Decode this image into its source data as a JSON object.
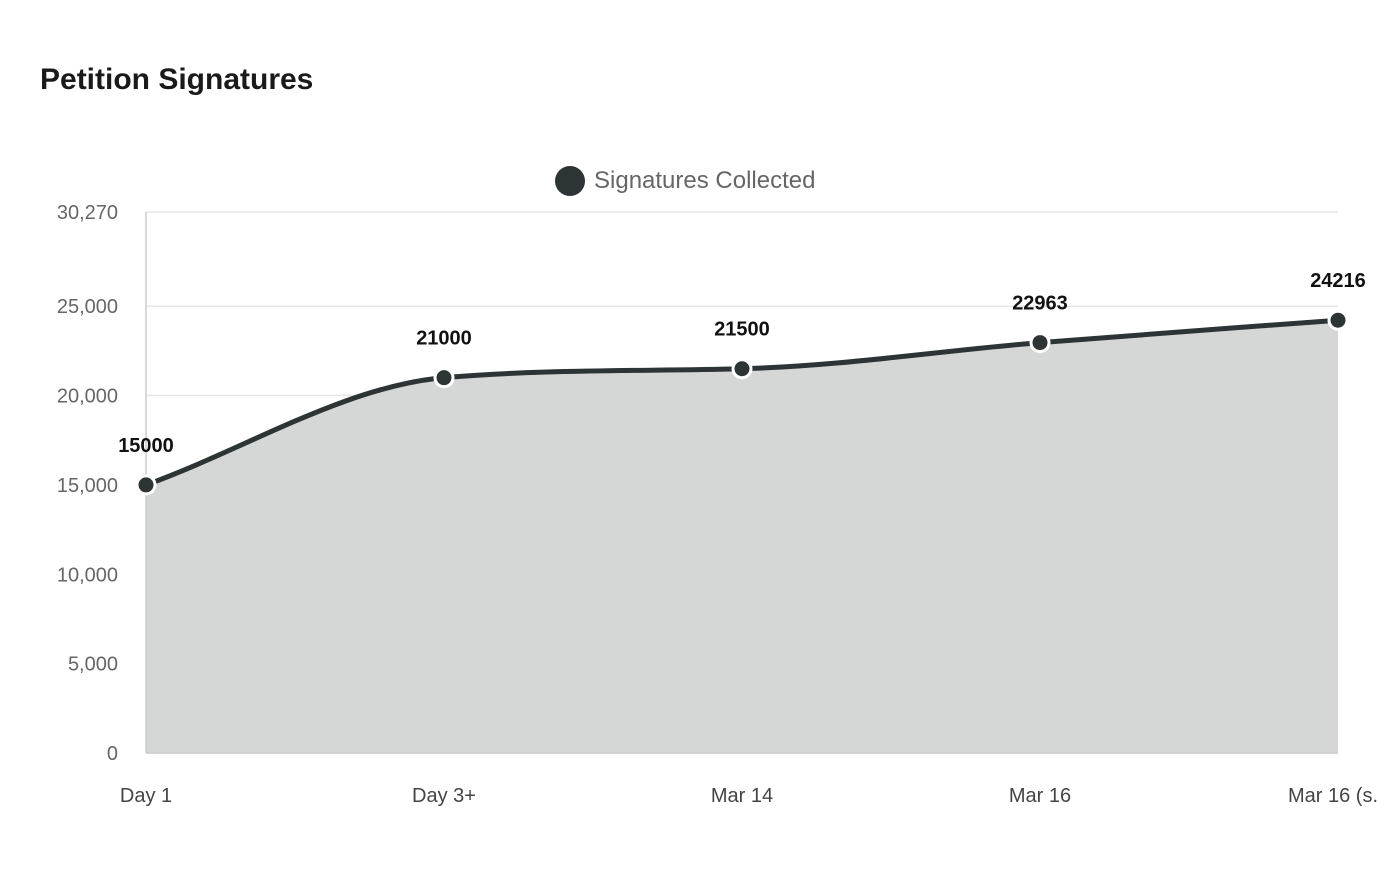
{
  "chart_data": {
    "type": "area",
    "title": "Petition Signatures",
    "categories": [
      "Day 1",
      "Day 3+",
      "Mar 14",
      "Mar 16",
      "Mar 16 (s."
    ],
    "series": [
      {
        "name": "Signatures Collected",
        "values": [
          15000,
          21000,
          21500,
          22963,
          24216
        ]
      }
    ],
    "data_labels": [
      "15000",
      "21000",
      "21500",
      "22963",
      "24216"
    ],
    "ylim": [
      0,
      30270
    ],
    "y_ticks": [
      0,
      5000,
      10000,
      15000,
      20000,
      25000,
      30270
    ],
    "y_tick_labels": [
      "0",
      "5,000",
      "10,000",
      "15,000",
      "20,000",
      "25,000",
      "30,270"
    ],
    "xlabel": "",
    "ylabel": "",
    "grid": true,
    "legend_position": "top",
    "colors": {
      "line": "#2d3436",
      "fill": "#d5d7d6",
      "marker": "#2d3436",
      "marker_stroke": "#ffffff",
      "grid": "#e6e6e6",
      "axis": "#cccccc"
    }
  }
}
